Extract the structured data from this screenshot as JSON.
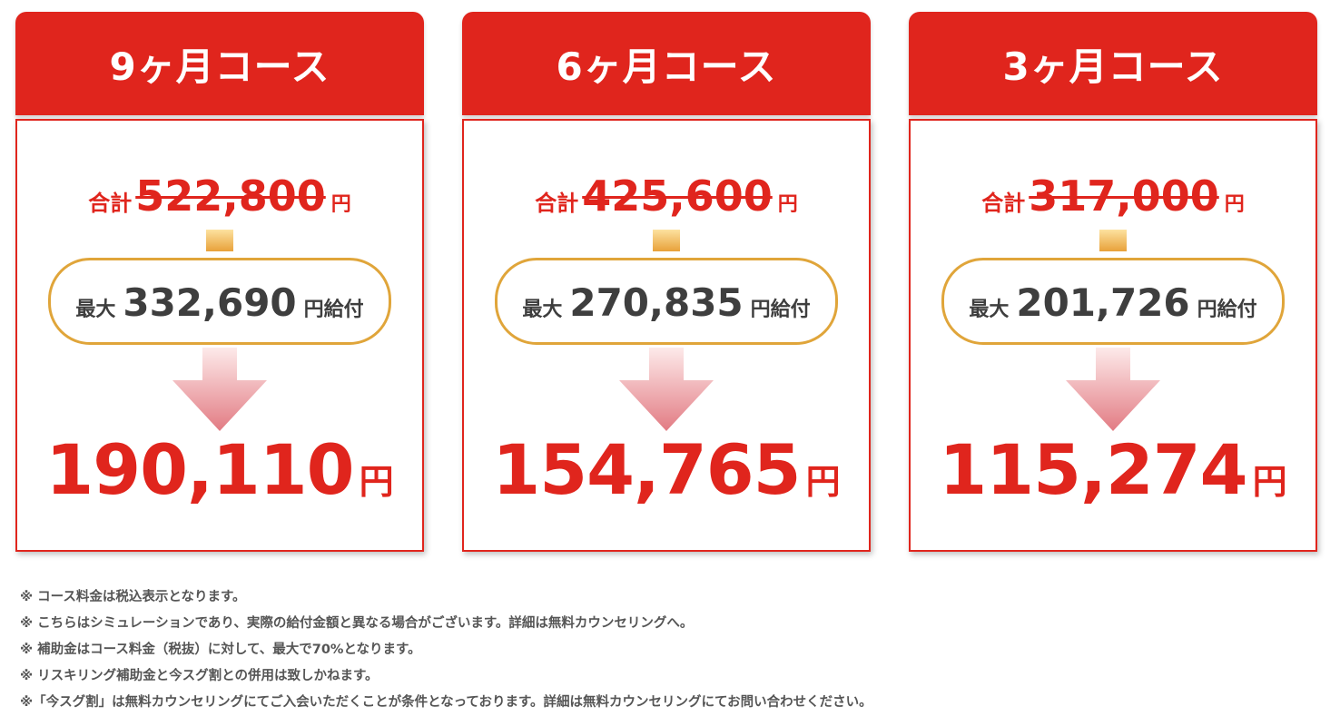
{
  "colors": {
    "brand_red": "#e0251d",
    "pill_border": "#e0a53a",
    "arrow_top": "#fbe3e3",
    "arrow_bottom": "#e07a80"
  },
  "courses": [
    {
      "title": "9ヶ月コース",
      "total_label": "合計",
      "total_amount": "522,800",
      "total_unit": "円",
      "subsidy_label": "最大",
      "subsidy_amount": "332,690",
      "subsidy_unit": "円給付",
      "final_amount": "190,110",
      "final_unit": "円"
    },
    {
      "title": "6ヶ月コース",
      "total_label": "合計",
      "total_amount": "425,600",
      "total_unit": "円",
      "subsidy_label": "最大",
      "subsidy_amount": "270,835",
      "subsidy_unit": "円給付",
      "final_amount": "154,765",
      "final_unit": "円"
    },
    {
      "title": "3ヶ月コース",
      "total_label": "合計",
      "total_amount": "317,000",
      "total_unit": "円",
      "subsidy_label": "最大",
      "subsidy_amount": "201,726",
      "subsidy_unit": "円給付",
      "final_amount": "115,274",
      "final_unit": "円"
    }
  ],
  "notes": [
    "※ コース料金は税込表示となります。",
    "※ こちらはシミュレーションであり、実際の給付金額と異なる場合がございます。詳細は無料カウンセリングへ。",
    "※ 補助金はコース料金（税抜）に対して、最大で70%となります。",
    "※ リスキリング補助金と今スグ割との併用は致しかねます。",
    "※「今スグ割」は無料カウンセリングにてご入会いただくことが条件となっております。詳細は無料カウンセリングにてお問い合わせください。"
  ]
}
